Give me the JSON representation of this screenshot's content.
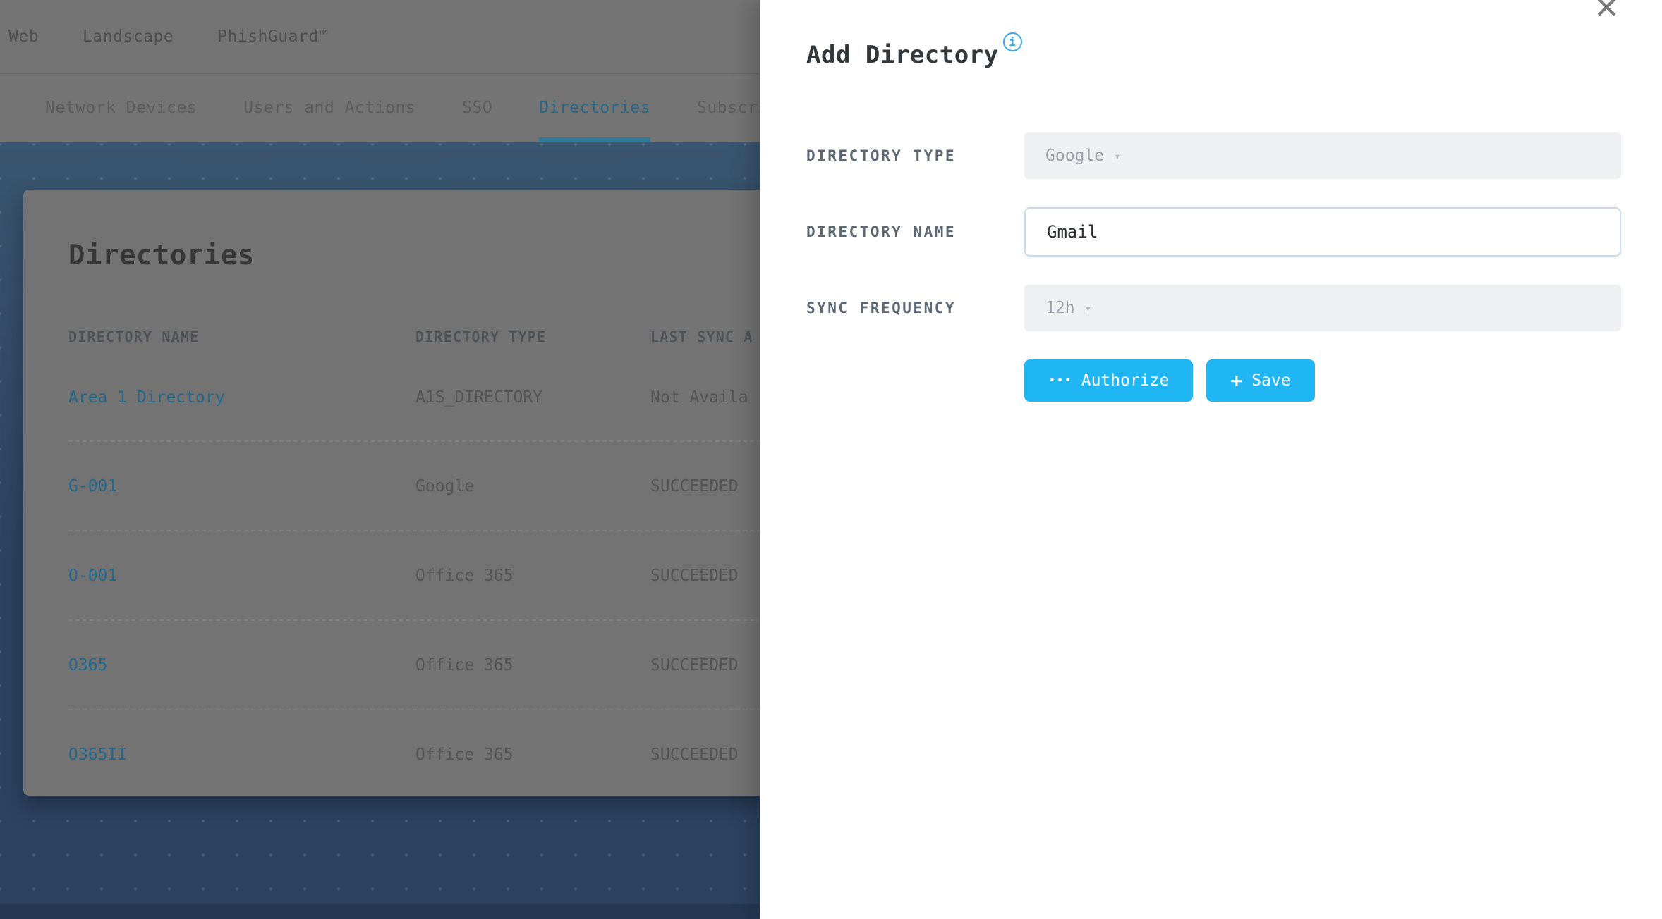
{
  "header_nav": {
    "items": [
      {
        "label": "Web"
      },
      {
        "label": "Landscape"
      },
      {
        "label": "PhishGuard™"
      }
    ]
  },
  "tabs": {
    "items": [
      {
        "label": "Network Devices",
        "active": false
      },
      {
        "label": "Users and Actions",
        "active": false
      },
      {
        "label": "SSO",
        "active": false
      },
      {
        "label": "Directories",
        "active": true
      },
      {
        "label": "Subscri",
        "active": false
      }
    ]
  },
  "page": {
    "title": "Directories",
    "table": {
      "columns": [
        "DIRECTORY NAME",
        "DIRECTORY TYPE",
        "LAST SYNC A"
      ],
      "rows": [
        {
          "name": "Area 1 Directory",
          "type": "A1S_DIRECTORY",
          "last_sync": "Not Availa"
        },
        {
          "name": "G-001",
          "type": "Google",
          "last_sync": "SUCCEEDED"
        },
        {
          "name": "O-001",
          "type": "Office 365",
          "last_sync": "SUCCEEDED"
        },
        {
          "name": "O365",
          "type": "Office 365",
          "last_sync": "SUCCEEDED"
        },
        {
          "name": "O365II",
          "type": "Office 365",
          "last_sync": "SUCCEEDED"
        }
      ]
    }
  },
  "drawer": {
    "title": "Add Directory",
    "fields": [
      {
        "label": "DIRECTORY TYPE",
        "value": "Google",
        "control": "select"
      },
      {
        "label": "DIRECTORY NAME",
        "value": "Gmail",
        "control": "input"
      },
      {
        "label": "SYNC FREQUENCY",
        "value": "12h",
        "control": "select"
      }
    ],
    "buttons": [
      {
        "label": "Authorize"
      },
      {
        "label": "Save"
      }
    ]
  },
  "icons": {
    "info_icon": "i",
    "close_icon": "✕",
    "caret_down_icon": "▾",
    "authorize_dots_icon": "•••",
    "save_plus_icon": "+"
  },
  "colors": {
    "accent": "#1fb6f3",
    "link": "#26688c",
    "tab_active": "#26698a",
    "background_navy": "#2e4560",
    "field_disabled_bg": "#eef0f2",
    "input_border": "#ccd9e6"
  }
}
